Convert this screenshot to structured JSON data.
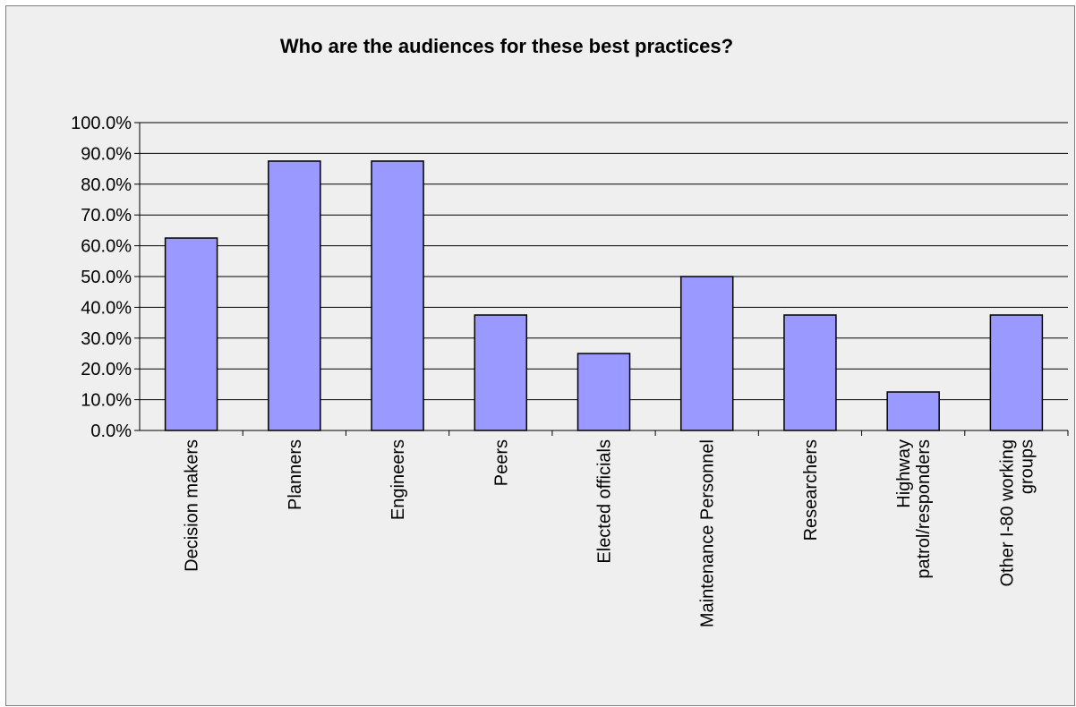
{
  "chart_data": {
    "type": "bar",
    "title": "Who are the audiences for these best practices?",
    "categories": [
      "Decision makers",
      "Planners",
      "Engineers",
      "Peers",
      "Elected officials",
      "Maintenance Personnel",
      "Researchers",
      "Highway patrol/responders",
      "Other I-80 working groups"
    ],
    "category_label_lines": [
      [
        "Decision makers"
      ],
      [
        "Planners"
      ],
      [
        "Engineers"
      ],
      [
        "Peers"
      ],
      [
        "Elected officials"
      ],
      [
        "Maintenance Personnel"
      ],
      [
        "Researchers"
      ],
      [
        "Highway",
        "patrol/responders"
      ],
      [
        "Other I-80 working",
        "groups"
      ]
    ],
    "values": [
      62.5,
      87.5,
      87.5,
      37.5,
      25.0,
      50.0,
      37.5,
      12.5,
      37.5
    ],
    "ylim": [
      0,
      100
    ],
    "ytick_labels": [
      "0.0%",
      "10.0%",
      "20.0%",
      "30.0%",
      "40.0%",
      "50.0%",
      "60.0%",
      "70.0%",
      "80.0%",
      "90.0%",
      "100.0%"
    ],
    "xlabel": "",
    "ylabel": "",
    "grid": true,
    "legend": "none",
    "colors": {
      "bar_fill": "#9999ff",
      "bar_stroke": "#000000",
      "gridline": "#000000",
      "background": "#efefef"
    }
  }
}
